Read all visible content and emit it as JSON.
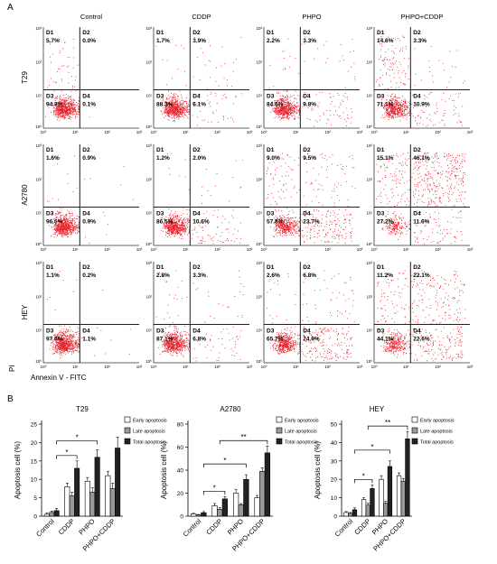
{
  "panel_a": {
    "label": "A",
    "columns": [
      "Control",
      "CDDP",
      "PHPO",
      "PHPO+CDDP"
    ],
    "rows": [
      "T29",
      "A2780",
      "HEY"
    ],
    "x_axis_label": "Annexin V - FITC",
    "y_axis_label": "PI",
    "dot_color": "#e8202a",
    "quadrant_labels": [
      "D1",
      "D2",
      "D3",
      "D4"
    ],
    "tick_labels": [
      "10⁰",
      "10¹",
      "10²",
      "10³"
    ],
    "plots": [
      [
        {
          "D1": "5.7%",
          "D2": "0.0%",
          "D3": "94.3%",
          "D4": "0.1%"
        },
        {
          "D1": "1.7%",
          "D2": "3.9%",
          "D3": "88.3%",
          "D4": "6.1%"
        },
        {
          "D1": "2.2%",
          "D2": "3.3%",
          "D3": "84.6%",
          "D4": "9.8%"
        },
        {
          "D1": "14.6%",
          "D2": "3.3%",
          "D3": "71.1%",
          "D4": "10.9%"
        }
      ],
      [
        {
          "D1": "1.6%",
          "D2": "0.9%",
          "D3": "96.6%",
          "D4": "0.9%"
        },
        {
          "D1": "1.2%",
          "D2": "2.0%",
          "D3": "86.5%",
          "D4": "10.6%"
        },
        {
          "D1": "9.0%",
          "D2": "9.5%",
          "D3": "57.8%",
          "D4": "23.7%"
        },
        {
          "D1": "15.1%",
          "D2": "46.1%",
          "D3": "27.2%",
          "D4": "11.6%"
        }
      ],
      [
        {
          "D1": "1.1%",
          "D2": "0.2%",
          "D3": "97.6%",
          "D4": "1.1%"
        },
        {
          "D1": "2.8%",
          "D2": "3.3%",
          "D3": "87.1%",
          "D4": "6.8%"
        },
        {
          "D1": "2.6%",
          "D2": "6.8%",
          "D3": "65.7%",
          "D4": "24.9%"
        },
        {
          "D1": "11.2%",
          "D2": "22.1%",
          "D3": "44.1%",
          "D4": "22.6%"
        }
      ]
    ]
  },
  "panel_b": {
    "label": "B",
    "legend": [
      "Early apoptosis",
      "Late apoptosis",
      "Total apoptosis"
    ],
    "colors": [
      "#ffffff",
      "#999999",
      "#222222"
    ],
    "ylabel": "Apoptosis cell (%)"
  },
  "chart_data": [
    {
      "type": "bar",
      "title": "T29",
      "ylabel": "Apoptosis cell (%)",
      "categories": [
        "Control",
        "CDDP",
        "PHPO",
        "PHPO+CDDP"
      ],
      "ylim": [
        0,
        25
      ],
      "yticks": [
        0,
        5,
        10,
        15,
        20,
        25
      ],
      "series": [
        {
          "name": "Early apoptosis",
          "values": [
            0.5,
            8,
            9.5,
            11
          ],
          "errors": [
            0.4,
            1,
            1,
            1.2
          ]
        },
        {
          "name": "Late apoptosis",
          "values": [
            1,
            5.5,
            6.5,
            7.5
          ],
          "errors": [
            0.4,
            1,
            1.2,
            1.5
          ]
        },
        {
          "name": "Total apoptosis",
          "values": [
            1.5,
            13,
            16,
            18.5
          ],
          "errors": [
            0.6,
            2,
            2,
            3
          ]
        }
      ],
      "significance": [
        {
          "from": 0,
          "to": 1,
          "label": "*"
        },
        {
          "from": 0,
          "to": 2,
          "label": "*"
        }
      ]
    },
    {
      "type": "bar",
      "title": "A2780",
      "ylabel": "Apoptosis cell (%)",
      "categories": [
        "Control",
        "CDDP",
        "PHPO",
        "PHPO+CDDP"
      ],
      "ylim": [
        0,
        80
      ],
      "yticks": [
        0,
        20,
        40,
        60,
        80
      ],
      "series": [
        {
          "name": "Early apoptosis",
          "values": [
            2,
            9,
            20,
            16
          ],
          "errors": [
            0.5,
            2,
            3,
            2
          ]
        },
        {
          "name": "Late apoptosis",
          "values": [
            1,
            6,
            10,
            39
          ],
          "errors": [
            0.5,
            1.5,
            1,
            3
          ]
        },
        {
          "name": "Total apoptosis",
          "values": [
            3,
            15,
            32,
            55
          ],
          "errors": [
            1,
            2,
            4,
            6
          ]
        }
      ],
      "significance": [
        {
          "from": 0,
          "to": 1,
          "label": "*"
        },
        {
          "from": 0,
          "to": 2,
          "label": "*"
        },
        {
          "from": 1,
          "to": 3,
          "label": "**"
        }
      ]
    },
    {
      "type": "bar",
      "title": "HEY",
      "ylabel": "Apoptosis cell (%)",
      "categories": [
        "Control",
        "CDDP",
        "PHPO",
        "PHPO+CDDP"
      ],
      "ylim": [
        0,
        50
      ],
      "yticks": [
        0,
        10,
        20,
        30,
        40,
        50
      ],
      "series": [
        {
          "name": "Early apoptosis",
          "values": [
            2,
            9,
            20,
            22
          ],
          "errors": [
            0.5,
            1,
            2,
            1.5
          ]
        },
        {
          "name": "Late apoptosis",
          "values": [
            1.5,
            6,
            7,
            19
          ],
          "errors": [
            0.5,
            1,
            1,
            1.5
          ]
        },
        {
          "name": "Total apoptosis",
          "values": [
            3.5,
            15,
            27,
            42
          ],
          "errors": [
            1,
            2,
            3,
            4
          ]
        }
      ],
      "significance": [
        {
          "from": 0,
          "to": 1,
          "label": "*"
        },
        {
          "from": 0,
          "to": 2,
          "label": "*"
        },
        {
          "from": 1,
          "to": 3,
          "label": "**"
        }
      ]
    }
  ]
}
